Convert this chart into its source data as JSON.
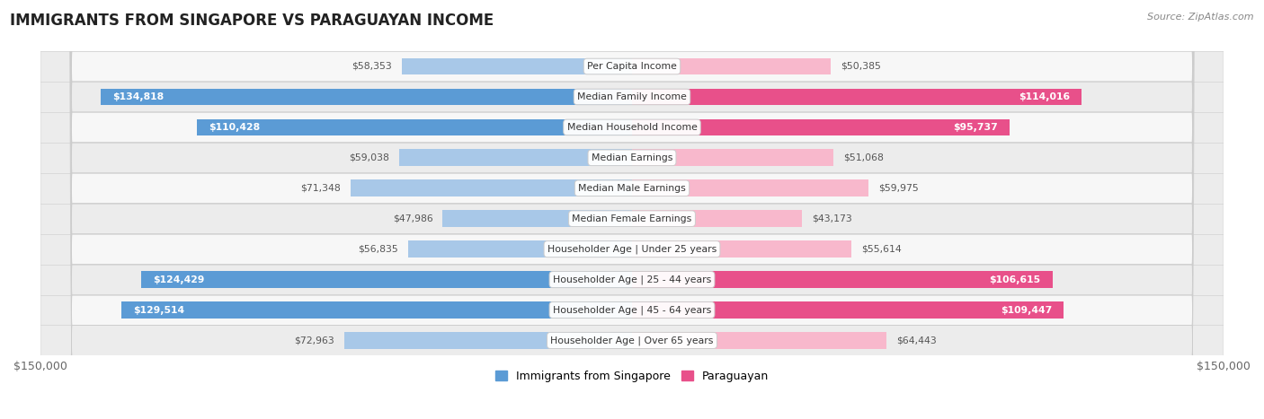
{
  "title": "IMMIGRANTS FROM SINGAPORE VS PARAGUAYAN INCOME",
  "source": "Source: ZipAtlas.com",
  "categories": [
    "Per Capita Income",
    "Median Family Income",
    "Median Household Income",
    "Median Earnings",
    "Median Male Earnings",
    "Median Female Earnings",
    "Householder Age | Under 25 years",
    "Householder Age | 25 - 44 years",
    "Householder Age | 45 - 64 years",
    "Householder Age | Over 65 years"
  ],
  "singapore_values": [
    58353,
    134818,
    110428,
    59038,
    71348,
    47986,
    56835,
    124429,
    129514,
    72963
  ],
  "paraguayan_values": [
    50385,
    114016,
    95737,
    51068,
    59975,
    43173,
    55614,
    106615,
    109447,
    64443
  ],
  "singapore_labels": [
    "$58,353",
    "$134,818",
    "$110,428",
    "$59,038",
    "$71,348",
    "$47,986",
    "$56,835",
    "$124,429",
    "$129,514",
    "$72,963"
  ],
  "paraguayan_labels": [
    "$50,385",
    "$114,016",
    "$95,737",
    "$51,068",
    "$59,975",
    "$43,173",
    "$55,614",
    "$106,615",
    "$109,447",
    "$64,443"
  ],
  "max_value": 150000,
  "singapore_color_light": "#a8c8e8",
  "singapore_color_dark": "#5b9bd5",
  "paraguayan_color_light": "#f8b8cc",
  "paraguayan_color_dark": "#e8508a",
  "threshold": 80000,
  "bar_height": 0.55,
  "row_colors": [
    "#f7f7f7",
    "#ececec"
  ],
  "legend_singapore": "Immigrants from Singapore",
  "legend_paraguayan": "Paraguayan",
  "xlabel_left": "$150,000",
  "xlabel_right": "$150,000",
  "label_color_outside": "#555555",
  "label_color_inside": "#ffffff"
}
